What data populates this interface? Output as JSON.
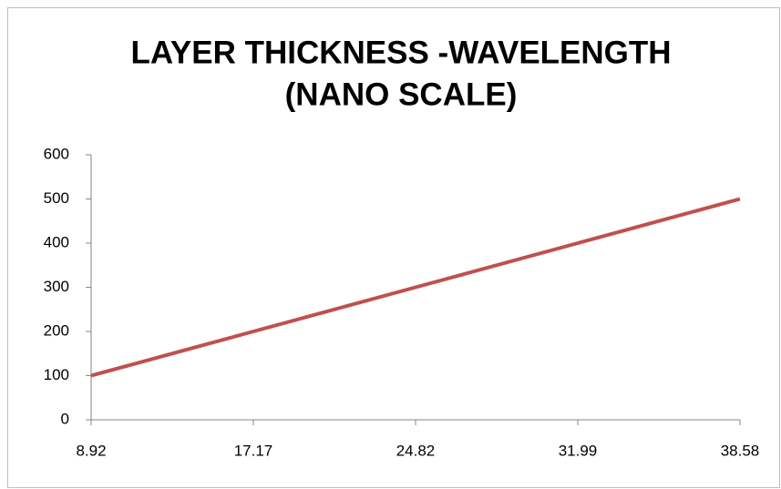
{
  "chart_data": {
    "type": "line",
    "title": [
      "LAYER THICKNESS -WAVELENGTH",
      "(NANO SCALE)"
    ],
    "categories": [
      "8.92",
      "17.17",
      "24.82",
      "31.99",
      "38.58"
    ],
    "values": [
      100,
      200,
      300,
      400,
      500
    ],
    "color": "#c0504d",
    "ylim": [
      0,
      600
    ],
    "yticks": [
      0,
      100,
      200,
      300,
      400,
      500,
      600
    ],
    "grid": false
  }
}
